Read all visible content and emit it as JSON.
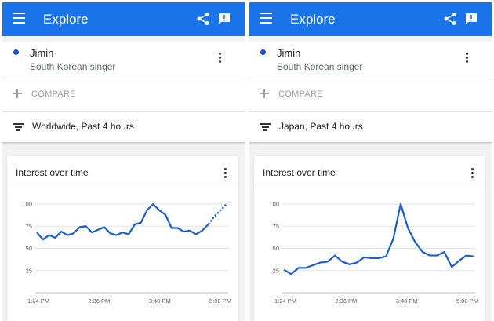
{
  "panels": [
    {
      "appbar": {
        "title": "Explore"
      },
      "term": {
        "name": "Jimin",
        "description": "South Korean singer"
      },
      "compare_label": "COMPARE",
      "filter_label": "Worldwide, Past 4 hours",
      "chart_title": "Interest over time",
      "chart_data": {
        "type": "line",
        "xlabel": "",
        "ylabel": "",
        "ylim": [
          0,
          100
        ],
        "yticks": [
          25,
          50,
          75,
          100
        ],
        "xticks": [
          "1:24 PM",
          "2:36 PM",
          "3:48 PM",
          "5:00 PM"
        ],
        "series": [
          {
            "color": "#1a5fc7",
            "values": [
              68,
              60,
              65,
              62,
              69,
              65,
              67,
              74,
              75,
              68,
              71,
              74,
              67,
              65,
              68,
              66,
              77,
              79,
              93,
              100,
              93,
              88,
              73,
              73,
              69,
              70,
              66,
              70,
              77
            ],
            "partial_values": [
              77,
              86,
              93,
              100
            ]
          }
        ]
      }
    },
    {
      "appbar": {
        "title": "Explore"
      },
      "term": {
        "name": "Jimin",
        "description": "South Korean singer"
      },
      "compare_label": "COMPARE",
      "filter_label": "Japan, Past 4 hours",
      "chart_title": "Interest over time",
      "chart_data": {
        "type": "line",
        "xlabel": "",
        "ylabel": "",
        "ylim": [
          0,
          100
        ],
        "yticks": [
          25,
          50,
          75,
          100
        ],
        "xticks": [
          "1:24 PM",
          "2:36 PM",
          "3:48 PM",
          "5:00 PM"
        ],
        "series": [
          {
            "color": "#1a5fc7",
            "values": [
              26,
              21,
              28,
              28,
              31,
              34,
              35,
              42,
              35,
              32,
              34,
              40,
              39,
              39,
              41,
              61,
              100,
              73,
              57,
              46,
              42,
              42,
              46,
              29,
              36,
              42,
              41
            ],
            "partial_values": []
          }
        ]
      }
    }
  ]
}
